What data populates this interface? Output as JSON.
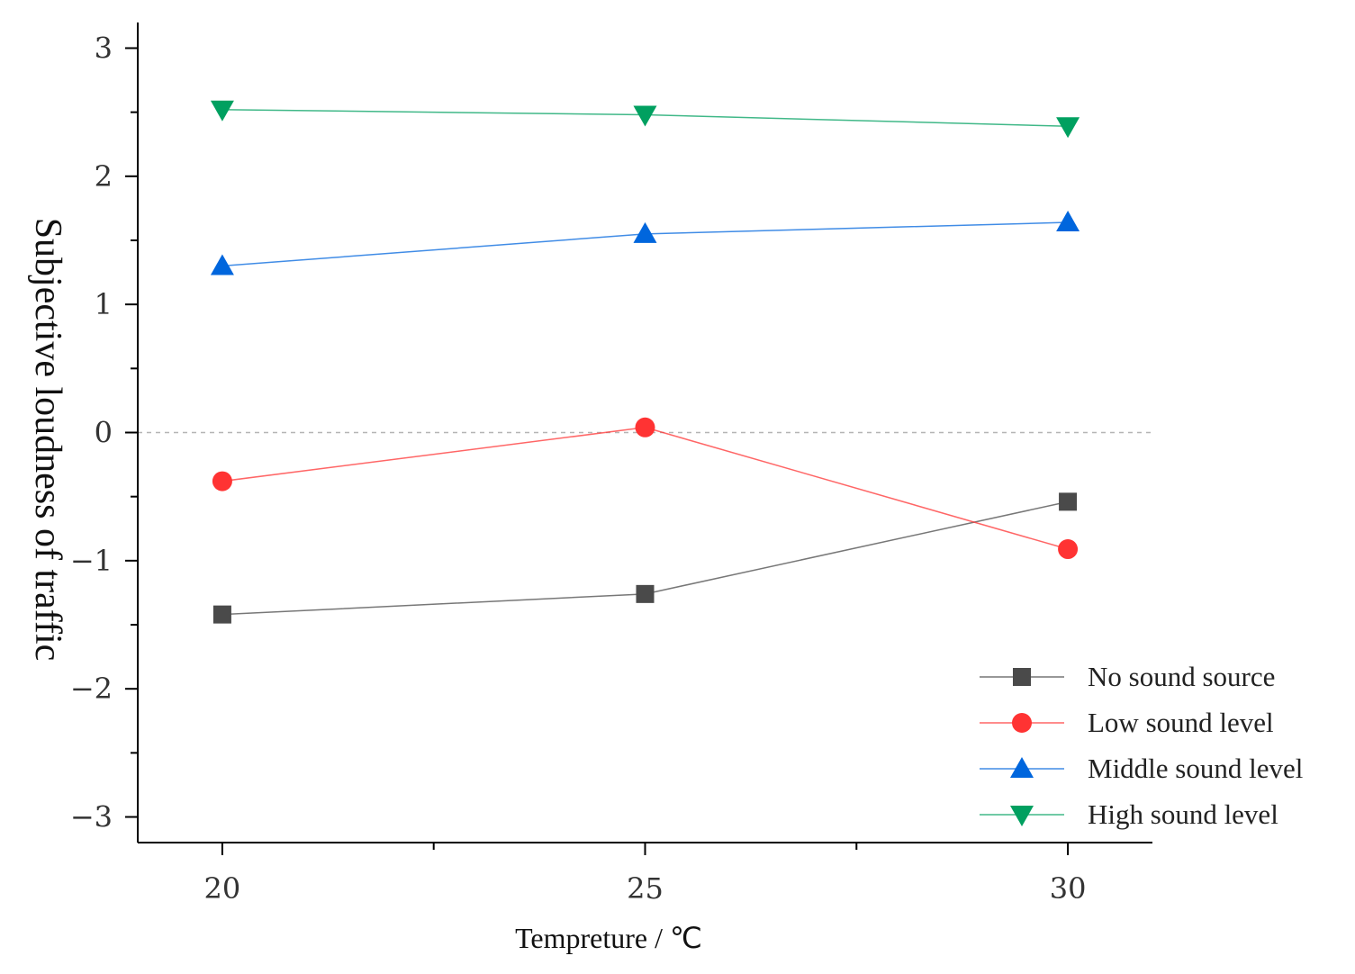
{
  "chart_data": {
    "type": "line",
    "x": [
      20,
      25,
      30
    ],
    "xlabel": "Tempreture / ℃",
    "ylabel": "Subjective loudness of traffic",
    "xticks": [
      "20",
      "25",
      "30"
    ],
    "yticks": [
      "−3",
      "−2",
      "−1",
      "0",
      "1",
      "2",
      "3"
    ],
    "ytick_values": [
      -3,
      -2,
      -1,
      0,
      1,
      2,
      3
    ],
    "xlim": [
      19,
      31
    ],
    "ylim": [
      -3.2,
      3.2
    ],
    "reference_line": {
      "y": 0,
      "style": "dashed"
    },
    "legend_position": "bottom-right",
    "series": [
      {
        "name": "No sound source",
        "values": [
          -1.42,
          -1.26,
          -0.54
        ],
        "color": "#4a4a4a",
        "marker": "square"
      },
      {
        "name": "Low sound level",
        "values": [
          -0.38,
          0.04,
          -0.91
        ],
        "color": "#ff3333",
        "marker": "circle"
      },
      {
        "name": "Middle sound level",
        "values": [
          1.3,
          1.55,
          1.64
        ],
        "color": "#0066dd",
        "marker": "triangle-up"
      },
      {
        "name": "High sound level",
        "values": [
          2.52,
          2.48,
          2.39
        ],
        "color": "#00a060",
        "marker": "triangle-down"
      }
    ]
  }
}
